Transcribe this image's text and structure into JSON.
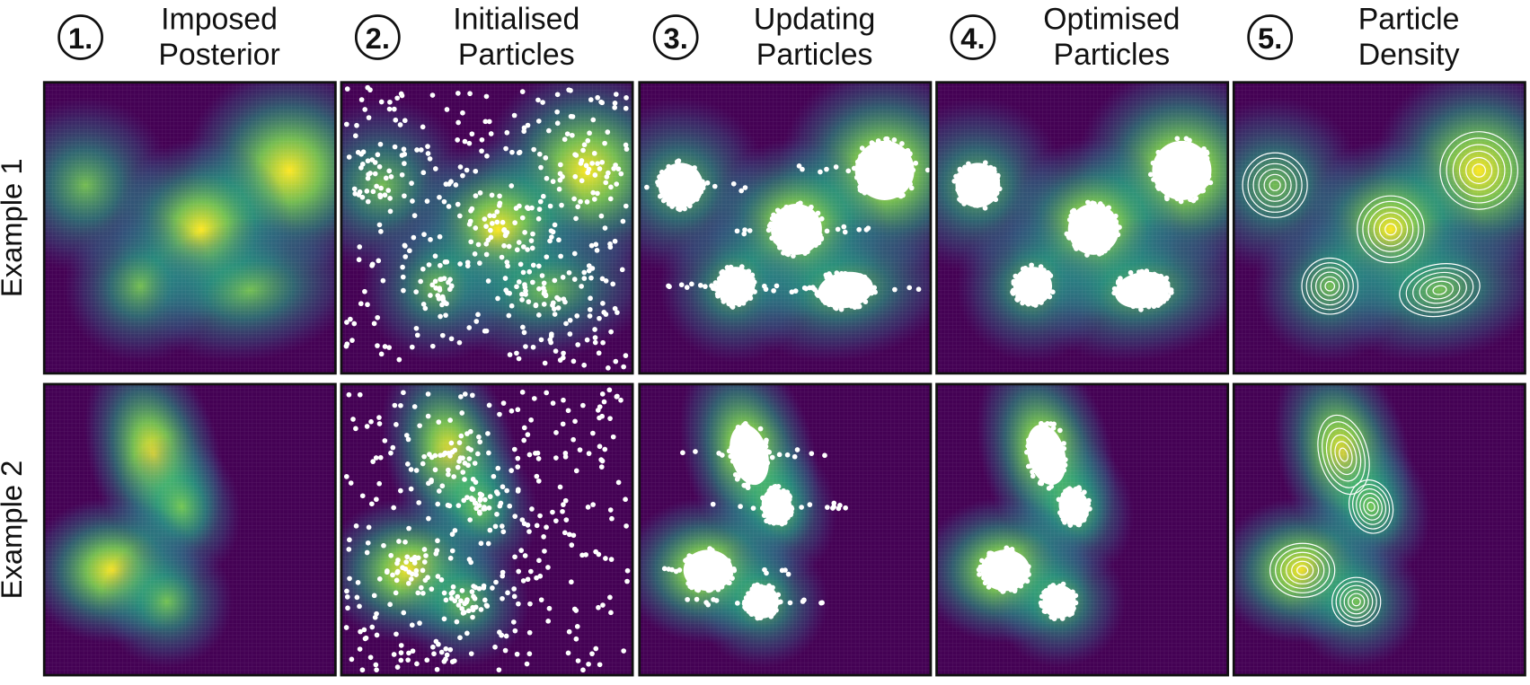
{
  "columns": [
    {
      "number": "1.",
      "title": [
        "Imposed",
        "Posterior"
      ]
    },
    {
      "number": "2.",
      "title": [
        "Initialised",
        "Particles"
      ]
    },
    {
      "number": "3.",
      "title": [
        "Updating",
        "Particles"
      ]
    },
    {
      "number": "4.",
      "title": [
        "Optimised",
        "Particles"
      ]
    },
    {
      "number": "5.",
      "title": [
        "Particle",
        "Density"
      ]
    }
  ],
  "rows": [
    "Example 1",
    "Example 2"
  ]
}
